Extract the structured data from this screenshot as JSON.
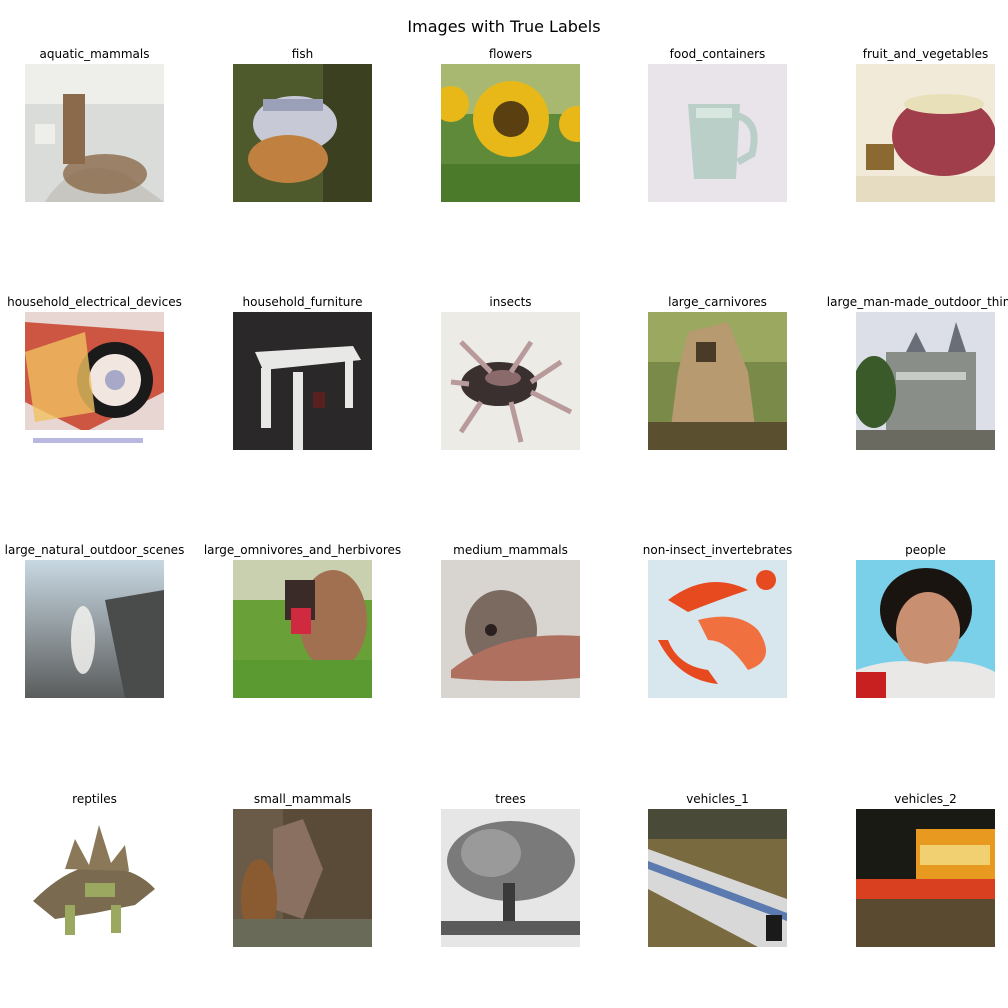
{
  "figure": {
    "title": "Images with True Labels"
  },
  "images": [
    {
      "label": "aquatic_mammals",
      "bg": "#d9dcd9",
      "fg": "#8a6a4a",
      "accent": "#f2f2ef",
      "motif": "otter"
    },
    {
      "label": "fish",
      "bg": "#4e5a2c",
      "fg": "#c7c9d6",
      "accent": "#c08040",
      "motif": "fish"
    },
    {
      "label": "flowers",
      "bg": "#5f8a3a",
      "fg": "#e8b818",
      "accent": "#5a4010",
      "motif": "flower"
    },
    {
      "label": "food_containers",
      "bg": "#e9e4ea",
      "fg": "#b9cfc8",
      "accent": "#d9d4da",
      "motif": "mug"
    },
    {
      "label": "fruit_and_vegetables",
      "bg": "#f1ead8",
      "fg": "#a13e4c",
      "accent": "#7a8a3a",
      "motif": "apple"
    },
    {
      "label": "household_electrical_devices",
      "bg": "#e8d6d2",
      "fg": "#c8402a",
      "accent": "#f0c060",
      "motif": "phone"
    },
    {
      "label": "household_furniture",
      "bg": "#2a2828",
      "fg": "#e8e8e6",
      "accent": "#5a2020",
      "motif": "table"
    },
    {
      "label": "insects",
      "bg": "#ecebe6",
      "fg": "#3a3030",
      "accent": "#b99a9a",
      "motif": "bug"
    },
    {
      "label": "large_carnivores",
      "bg": "#7a8a48",
      "fg": "#b89a70",
      "accent": "#4a3a28",
      "motif": "dog"
    },
    {
      "label": "large_man-made_outdoor_things",
      "bg": "#dcdfe8",
      "fg": "#8a8e88",
      "accent": "#3a5a2a",
      "motif": "castle"
    },
    {
      "label": "large_natural_outdoor_scenes",
      "bg": "#b8c4cc",
      "fg": "#4a4c4c",
      "accent": "#f2f2ee",
      "motif": "sea"
    },
    {
      "label": "large_omnivores_and_herbivores",
      "bg": "#6aa038",
      "fg": "#a07050",
      "accent": "#d02a40",
      "motif": "cow"
    },
    {
      "label": "medium_mammals",
      "bg": "#d8d4d0",
      "fg": "#b07060",
      "accent": "#7a6a60",
      "motif": "hand"
    },
    {
      "label": "non-insect_invertebrates",
      "bg": "#d8e6ee",
      "fg": "#e84a20",
      "accent": "#f07040",
      "motif": "lobster"
    },
    {
      "label": "people",
      "bg": "#7ad0e8",
      "fg": "#c89070",
      "accent": "#1a1410",
      "motif": "person"
    },
    {
      "label": "reptiles",
      "bg": "#ffffff",
      "fg": "#7a6a50",
      "accent": "#9aa860",
      "motif": "stego"
    },
    {
      "label": "small_mammals",
      "bg": "#5a4a38",
      "fg": "#8a7060",
      "accent": "#6a6a58",
      "motif": "squirrel"
    },
    {
      "label": "trees",
      "bg": "#e6e6e6",
      "fg": "#7a7a7a",
      "accent": "#3a3a3a",
      "motif": "tree"
    },
    {
      "label": "vehicles_1",
      "bg": "#7a6a40",
      "fg": "#d8d8d8",
      "accent": "#5a7ab0",
      "motif": "train"
    },
    {
      "label": "vehicles_2",
      "bg": "#1a1a14",
      "fg": "#e89a20",
      "accent": "#d84020",
      "motif": "bus"
    }
  ]
}
